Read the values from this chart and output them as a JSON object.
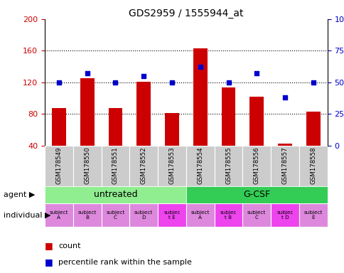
{
  "title": "GDS2959 / 1555944_at",
  "samples": [
    "GSM178549",
    "GSM178550",
    "GSM178551",
    "GSM178552",
    "GSM178553",
    "GSM178554",
    "GSM178555",
    "GSM178556",
    "GSM178557",
    "GSM178558"
  ],
  "counts": [
    87,
    125,
    87,
    121,
    81,
    163,
    113,
    102,
    42,
    83
  ],
  "percentile_ranks": [
    50,
    57,
    50,
    55,
    50,
    62,
    50,
    57,
    38,
    50
  ],
  "ylim_left": [
    40,
    200
  ],
  "ylim_right": [
    0,
    100
  ],
  "yticks_left": [
    40,
    80,
    120,
    160,
    200
  ],
  "yticks_right": [
    0,
    25,
    50,
    75,
    100
  ],
  "bar_color": "#cc0000",
  "dot_color": "#0000cc",
  "bar_bottom": 40,
  "agent_groups": [
    {
      "label": "untreated",
      "indices": [
        0,
        1,
        2,
        3,
        4
      ],
      "color": "#90ee90"
    },
    {
      "label": "G-CSF",
      "indices": [
        5,
        6,
        7,
        8,
        9
      ],
      "color": "#33cc55"
    }
  ],
  "individuals": [
    "subject\nA",
    "subject\nB",
    "subject\nC",
    "subject\nD",
    "subjec\nt E",
    "subject\nA",
    "subjec\nt B",
    "subject\nC",
    "subjec\nt D",
    "subject\nE"
  ],
  "individual_highlight": [
    4,
    6,
    8
  ],
  "individual_color_normal": "#dd88dd",
  "individual_color_highlight": "#ee44ee",
  "xlabel_color_bg": "#cccccc",
  "left_axis_color": "#cc0000",
  "right_axis_color": "#0000cc",
  "legend_count_label": "count",
  "legend_percentile_label": "percentile rank within the sample"
}
